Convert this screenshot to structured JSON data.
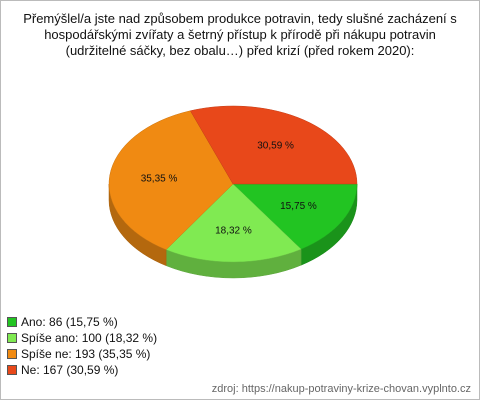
{
  "chart_data": {
    "type": "pie",
    "title": "Přemýšlel/a jste nad způsobem produkce potravin, tedy slušné zacházení s hospodářskými zvířaty a šetrný přístup k přírodě při nákupu potravin (udržitelné sáčky, bez obalu…) před krizí (před rokem 2020):",
    "categories": [
      "Ano",
      "Spíše ano",
      "Spíše ne",
      "Ne"
    ],
    "values": [
      15.75,
      18.32,
      35.35,
      30.59
    ],
    "value_labels": [
      "15,75 %",
      "18,32 %",
      "35,35 %",
      "30,59 %"
    ],
    "legend_labels": [
      "Ano: 86 (15,75 %)",
      "Spíše ano: 100 (18,32 %)",
      "Spíše ne: 193 (35,35 %)",
      "Ne: 167 (30,59 %)"
    ],
    "colors": [
      "#22c422",
      "#80ea52",
      "#f08a12",
      "#e8481a"
    ],
    "source": "zdroj: https://nakup-potraviny-krize-chovan.vyplnto.cz"
  }
}
